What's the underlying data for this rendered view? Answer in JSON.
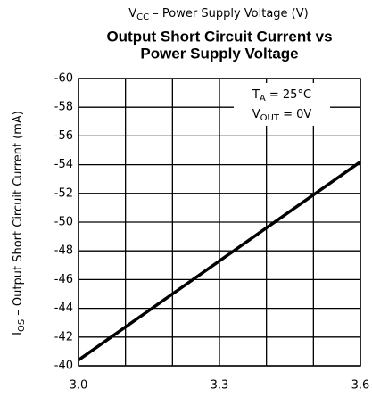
{
  "chart_data": {
    "type": "line",
    "title": [
      "Output Short Circuit Current vs",
      "Power Supply Voltage"
    ],
    "xlabel": [
      "V",
      "CC",
      " – Power Supply Voltage (V)"
    ],
    "ylabel": [
      "I",
      "OS",
      " – Output Short Circuit Current (mA)"
    ],
    "annotation": [
      [
        "T",
        "A",
        " = 25°C"
      ],
      [
        "V",
        "OUT",
        " = 0V"
      ]
    ],
    "x": [
      3.0,
      3.6
    ],
    "values": [
      -40.4,
      -54.2
    ],
    "color": "#000000",
    "xlim": [
      3.0,
      3.6
    ],
    "xticks": [
      {
        "value": 3.0,
        "label": "3.0"
      },
      {
        "value": 3.3,
        "label": "3.3"
      },
      {
        "value": 3.6,
        "label": "3.6"
      }
    ],
    "x_minor_grid": [
      3.1,
      3.2,
      3.4,
      3.5
    ],
    "ylim": [
      -40,
      -60
    ],
    "yticks": [
      -60,
      -58,
      -56,
      -54,
      -52,
      -50,
      -48,
      -46,
      -44,
      -42,
      -40
    ],
    "grid": true
  }
}
